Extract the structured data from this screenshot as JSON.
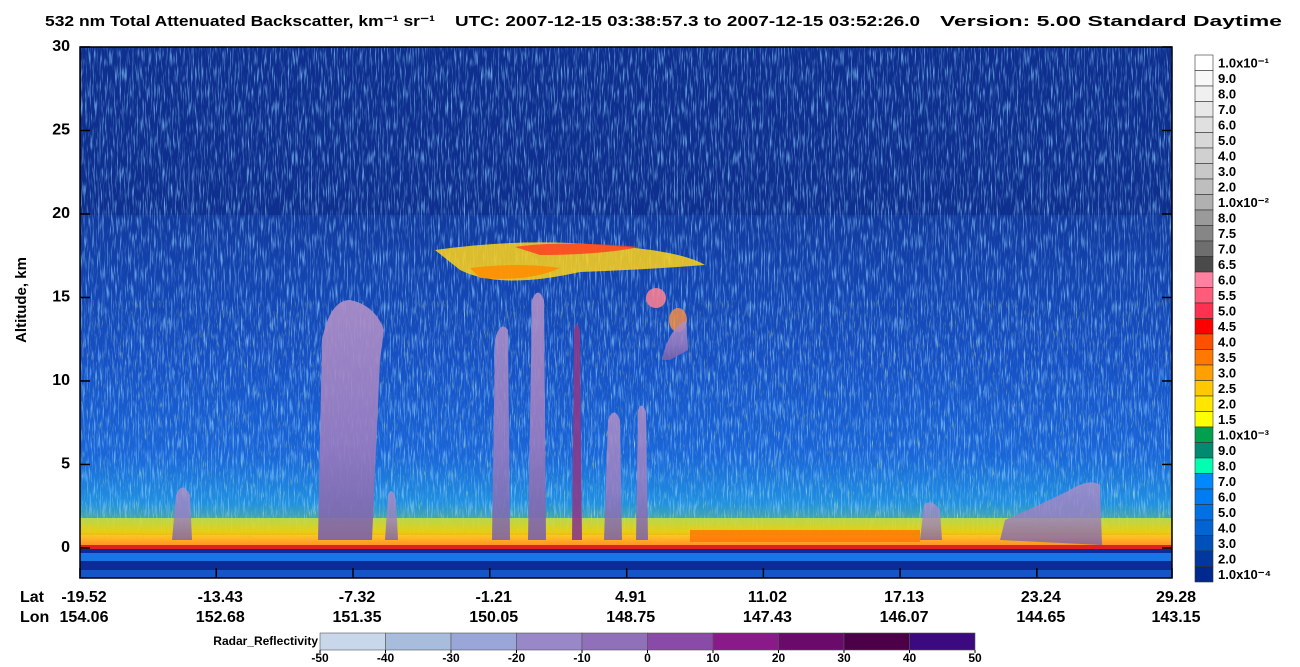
{
  "chart_data": {
    "type": "curtain",
    "title": "532 nm Total Attenuated Backscatter, km⁻¹ sr⁻¹",
    "time_range": "UTC:  2007-12-15 03:38:57.3  to  2007-12-15 03:52:26.0",
    "version": "Version: 5.00  Standard  Daytime",
    "y_label": "Altitude, km",
    "ylim": [
      -1.8,
      30
    ],
    "yticks": [
      0,
      5,
      10,
      15,
      20,
      25,
      30
    ],
    "x_row_labels": [
      "Lat",
      "Lon"
    ],
    "xlim": [
      -19.52,
      29.28
    ],
    "lat": [
      -19.52,
      -13.43,
      -7.32,
      -1.21,
      4.91,
      11.02,
      17.13,
      23.24,
      29.28
    ],
    "lon": [
      154.06,
      152.68,
      151.35,
      150.05,
      148.75,
      147.43,
      146.07,
      144.65,
      143.15
    ],
    "colorbar": {
      "labels": [
        "1.0x10⁻¹",
        "9.0",
        "8.0",
        "7.0",
        "6.0",
        "5.0",
        "4.0",
        "3.0",
        "2.0",
        "1.0x10⁻²",
        "8.0",
        "7.5",
        "7.0",
        "6.5",
        "6.0",
        "5.5",
        "5.0",
        "4.5",
        "4.0",
        "3.5",
        "3.0",
        "2.5",
        "2.0",
        "1.5",
        "1.0x10⁻³",
        "9.0",
        "8.0",
        "7.0",
        "6.0",
        "5.0",
        "4.0",
        "3.0",
        "2.0",
        "1.0x10⁻⁴"
      ],
      "colors": [
        "#ffffff",
        "#f8f8f8",
        "#f0f0f0",
        "#e8e8e8",
        "#e0e0e0",
        "#d8d8d8",
        "#d0d0d0",
        "#c8c8c8",
        "#bebebe",
        "#b0b0b0",
        "#9a9a9a",
        "#868686",
        "#6e6e6e",
        "#4a4a4a",
        "#ff80a0",
        "#ff5c7c",
        "#ff3050",
        "#ff0000",
        "#ff5000",
        "#ff7800",
        "#ffa000",
        "#ffc800",
        "#ffe600",
        "#ffff00",
        "#00a050",
        "#008a70",
        "#00ffb0",
        "#0088ff",
        "#007cf2",
        "#0070e4",
        "#0064d4",
        "#0050bc",
        "#0038a0",
        "#00288e"
      ]
    },
    "radar": {
      "label": "Radar_Reflectivity",
      "ticks": [
        -50,
        -40,
        -30,
        -20,
        -10,
        0,
        10,
        20,
        30,
        40,
        50
      ],
      "colors": [
        "#c8d8ea",
        "#a8bcdc",
        "#9aa6d8",
        "#9888c8",
        "#9070b8",
        "#8a4aa8",
        "#8a1a8a",
        "#6a0a6a",
        "#4c0048",
        "#3c0a80"
      ]
    }
  }
}
